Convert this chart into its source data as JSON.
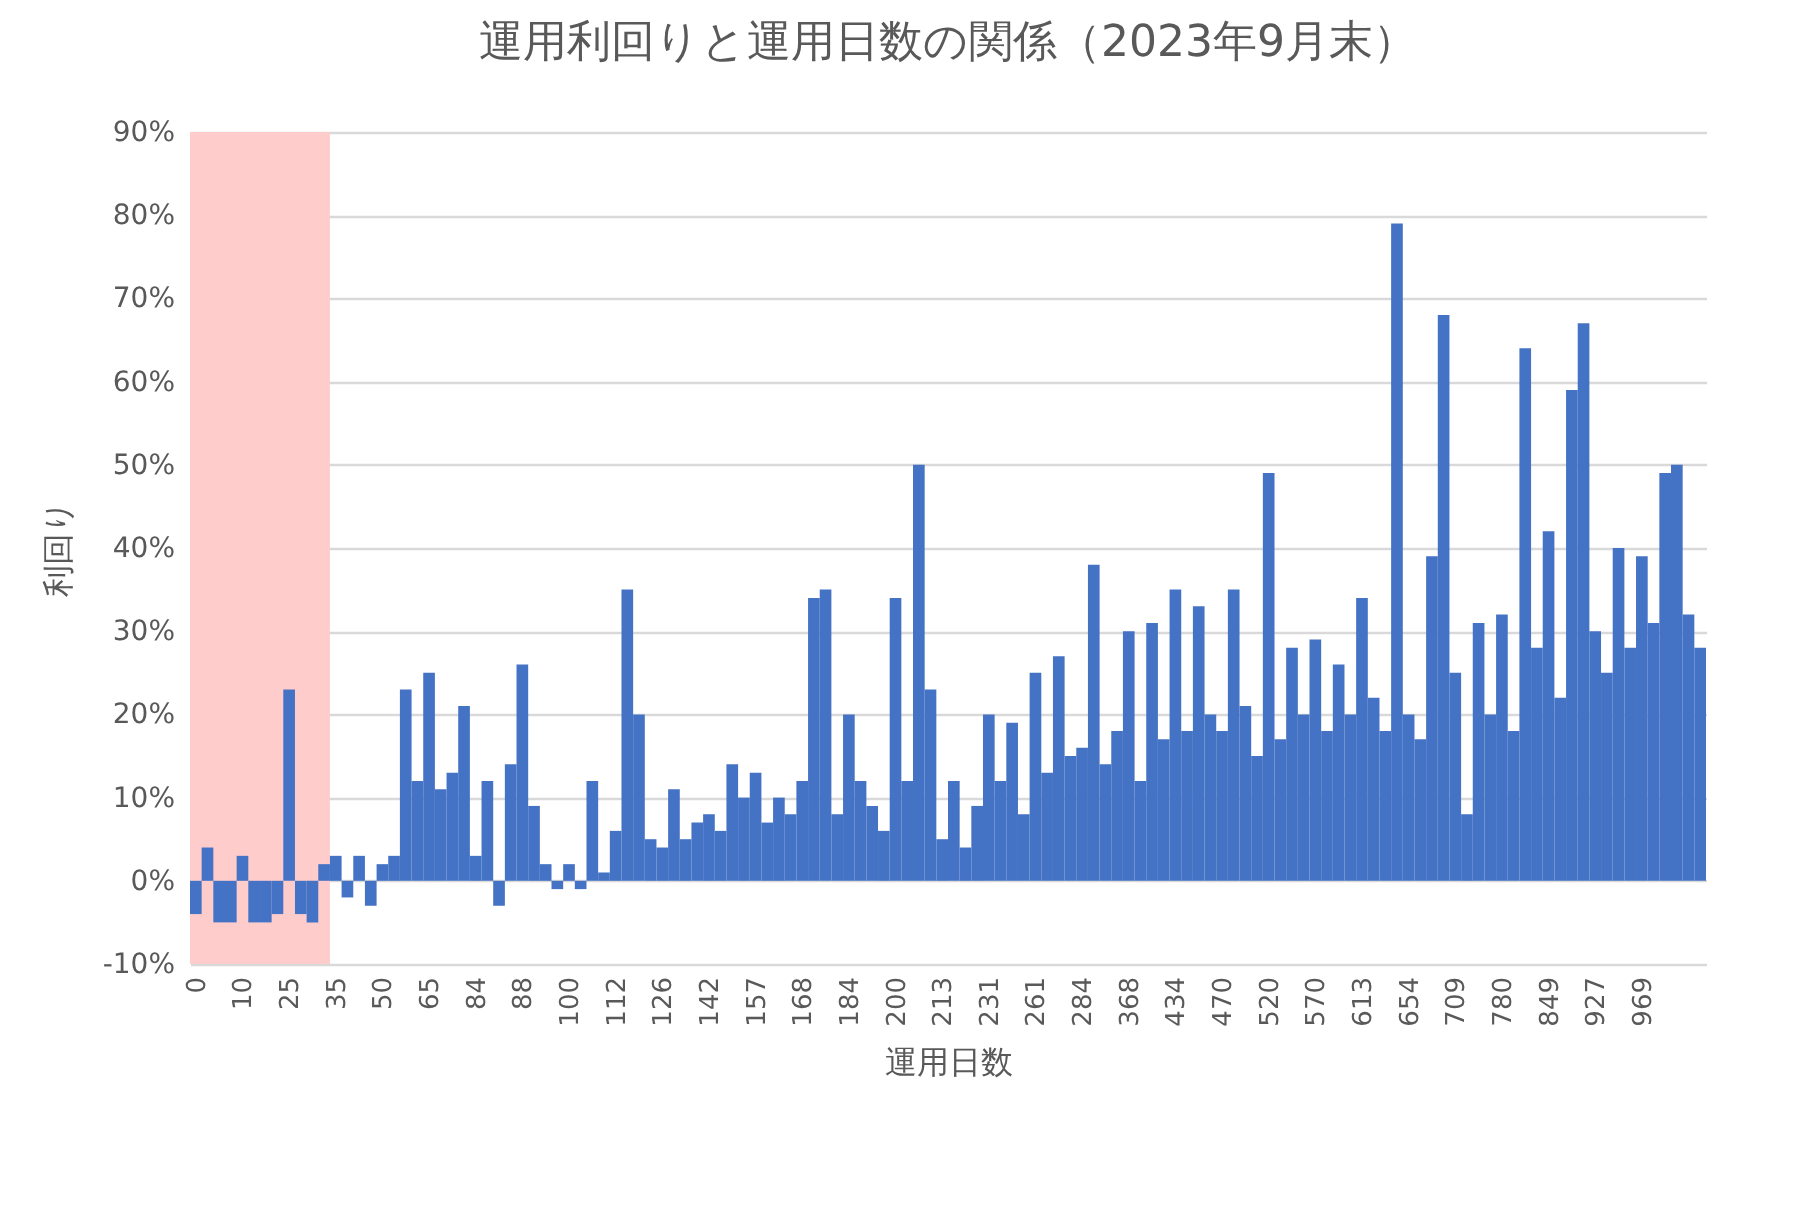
{
  "chart_data": {
    "type": "bar",
    "title": "運用利回りと運用日数の関係（2023年9月末）",
    "xlabel": "運用日数",
    "ylabel": "利回り",
    "categories": [
      "0",
      null,
      null,
      null,
      "10",
      null,
      null,
      null,
      "25",
      null,
      null,
      null,
      "35",
      null,
      null,
      null,
      "50",
      null,
      null,
      null,
      "65",
      null,
      null,
      null,
      "84",
      null,
      null,
      null,
      "88",
      null,
      null,
      null,
      "100",
      null,
      null,
      null,
      "112",
      null,
      null,
      null,
      "126",
      null,
      null,
      null,
      "142",
      null,
      null,
      null,
      "157",
      null,
      null,
      null,
      "168",
      null,
      null,
      null,
      "184",
      null,
      null,
      null,
      "200",
      null,
      null,
      null,
      "213",
      null,
      null,
      null,
      "231",
      null,
      null,
      null,
      "261",
      null,
      null,
      null,
      "284",
      null,
      null,
      null,
      "368",
      null,
      null,
      null,
      "434",
      null,
      null,
      null,
      "470",
      null,
      null,
      null,
      "520",
      null,
      null,
      null,
      "570",
      null,
      null,
      null,
      "613",
      null,
      null,
      null,
      "654",
      null,
      null,
      null,
      "709",
      null,
      null,
      null,
      "780",
      null,
      null,
      null,
      "849",
      null,
      null,
      null,
      "927",
      null,
      null,
      null,
      "969",
      null,
      null,
      null,
      null,
      null
    ],
    "values": [
      -4,
      4,
      -5,
      -5,
      3,
      -5,
      -5,
      -4,
      23,
      -4,
      -5,
      2,
      3,
      -2,
      3,
      -3,
      2,
      3,
      23,
      12,
      25,
      11,
      13,
      21,
      3,
      12,
      -3,
      14,
      26,
      9,
      2,
      -1,
      2,
      -1,
      12,
      1,
      6,
      35,
      20,
      5,
      4,
      11,
      5,
      7,
      8,
      6,
      14,
      10,
      13,
      7,
      10,
      8,
      12,
      34,
      35,
      8,
      20,
      12,
      9,
      6,
      34,
      12,
      50,
      23,
      5,
      12,
      4,
      9,
      20,
      12,
      19,
      8,
      25,
      13,
      27,
      15,
      16,
      38,
      14,
      18,
      30,
      12,
      31,
      17,
      35,
      18,
      33,
      20,
      18,
      35,
      21,
      15,
      49,
      17,
      28,
      20,
      29,
      18,
      26,
      20,
      34,
      22,
      18,
      79,
      20,
      17,
      39,
      68,
      25,
      8,
      31,
      20,
      32,
      18,
      64,
      28,
      42,
      22,
      59,
      67,
      30,
      25,
      40,
      28,
      39,
      31,
      49,
      50,
      32,
      28
    ],
    "color": "#4472c4",
    "ylim": [
      -10,
      90
    ],
    "yticks": [
      {
        "value": -10,
        "label": "-10%"
      },
      {
        "value": 0,
        "label": "0%"
      },
      {
        "value": 10,
        "label": "10%"
      },
      {
        "value": 20,
        "label": "20%"
      },
      {
        "value": 30,
        "label": "30%"
      },
      {
        "value": 40,
        "label": "40%"
      },
      {
        "value": 50,
        "label": "50%"
      },
      {
        "value": 60,
        "label": "60%"
      },
      {
        "value": 70,
        "label": "70%"
      },
      {
        "value": 80,
        "label": "80%"
      },
      {
        "value": 90,
        "label": "90%"
      }
    ],
    "bands": [
      {
        "axis": "x",
        "from": "0",
        "to": "35",
        "color": "#ffcccc"
      }
    ],
    "grid": "y"
  }
}
